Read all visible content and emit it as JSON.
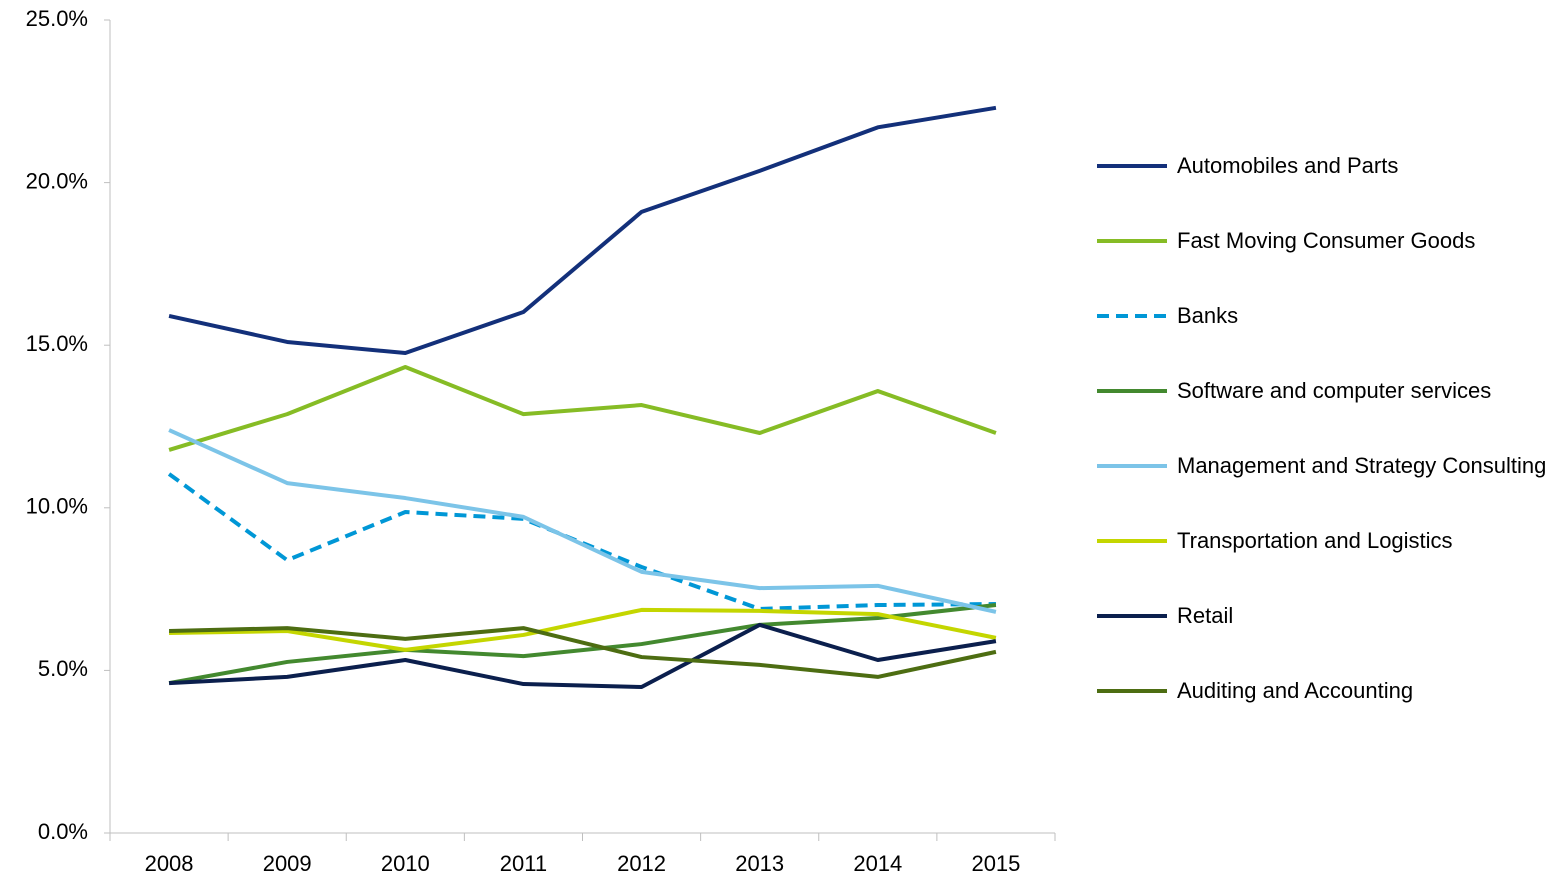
{
  "chart_data": {
    "type": "line",
    "categories": [
      "2008",
      "2009",
      "2010",
      "2011",
      "2012",
      "2013",
      "2014",
      "2015"
    ],
    "series": [
      {
        "name": "Automobiles and Parts",
        "color": "#13307a",
        "values": [
          15.9,
          15.1,
          14.76,
          16.02,
          19.1,
          20.36,
          21.7,
          22.3
        ]
      },
      {
        "name": "Fast Moving Consumer Goods",
        "color": "#86bc25",
        "values": [
          11.78,
          12.88,
          14.33,
          12.88,
          13.16,
          12.3,
          13.59,
          12.3
        ]
      },
      {
        "name": "Banks",
        "color": "#0097d6",
        "dashed": true,
        "values": [
          11.04,
          8.39,
          9.87,
          9.66,
          8.18,
          6.89,
          7.01,
          7.04
        ]
      },
      {
        "name": "Software and computer services",
        "color": "#43892f",
        "values": [
          4.61,
          5.26,
          5.63,
          5.44,
          5.81,
          6.4,
          6.61,
          7.01
        ]
      },
      {
        "name": "Management and Strategy Consulting",
        "color": "#7cc4e8",
        "values": [
          12.39,
          10.76,
          10.3,
          9.72,
          8.03,
          7.53,
          7.6,
          6.8
        ]
      },
      {
        "name": "Transportation and Logistics",
        "color": "#c4d600",
        "values": [
          6.15,
          6.21,
          5.63,
          6.09,
          6.86,
          6.83,
          6.73,
          6.0
        ]
      },
      {
        "name": "Retail",
        "color": "#0b1f4d",
        "values": [
          4.61,
          4.8,
          5.32,
          4.58,
          4.49,
          6.4,
          5.32,
          5.9
        ]
      },
      {
        "name": "Auditing and Accounting",
        "color": "#4d6d12",
        "values": [
          6.21,
          6.3,
          5.97,
          6.3,
          5.41,
          5.17,
          4.8,
          5.57
        ]
      }
    ],
    "ylim": [
      0,
      25
    ],
    "yticks": [
      {
        "value": 0,
        "label": "0.0%"
      },
      {
        "value": 5,
        "label": "5.0%"
      },
      {
        "value": 10,
        "label": "10.0%"
      },
      {
        "value": 15,
        "label": "15.0%"
      },
      {
        "value": 20,
        "label": "20.0%"
      },
      {
        "value": 25,
        "label": "25.0%"
      }
    ],
    "grid": false,
    "legend": "right"
  }
}
